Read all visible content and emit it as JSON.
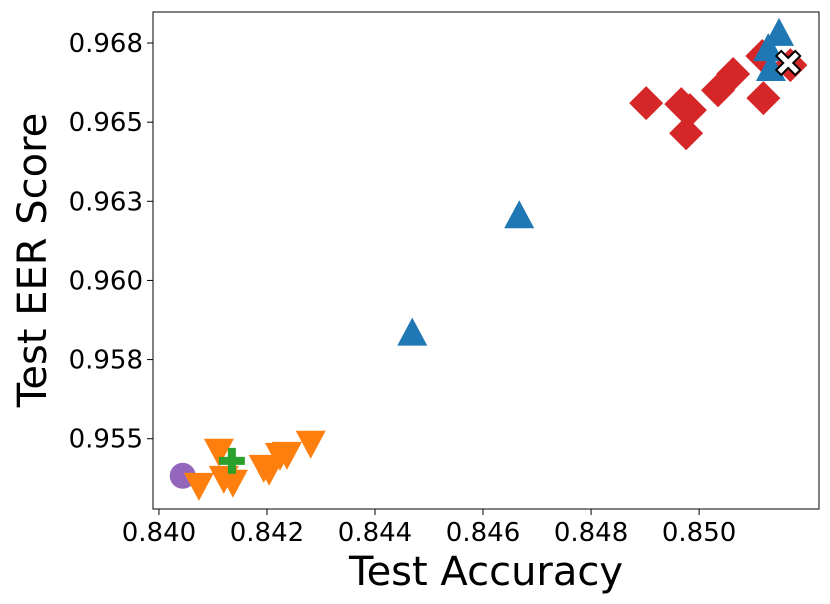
{
  "chart_data": {
    "type": "scatter",
    "xlabel": "Test Accuracy",
    "ylabel": "Test EER Score",
    "xlim": [
      0.83989,
      0.85222
    ],
    "ylim": [
      0.95278,
      0.96848
    ],
    "xticks": [
      {
        "value": 0.84,
        "label": "0.840"
      },
      {
        "value": 0.842,
        "label": "0.842"
      },
      {
        "value": 0.844,
        "label": "0.844"
      },
      {
        "value": 0.846,
        "label": "0.846"
      },
      {
        "value": 0.848,
        "label": "0.848"
      },
      {
        "value": 0.85,
        "label": "0.850"
      }
    ],
    "yticks": [
      {
        "value": 0.955,
        "label": "0.955"
      },
      {
        "value": 0.9575,
        "label": "0.958"
      },
      {
        "value": 0.96,
        "label": "0.960"
      },
      {
        "value": 0.9625,
        "label": "0.963"
      },
      {
        "value": 0.965,
        "label": "0.965"
      },
      {
        "value": 0.9675,
        "label": "0.968"
      }
    ],
    "series": [
      {
        "color": "#9467bd",
        "marker": "circle",
        "x": [
          0.84044
        ],
        "values": [
          0.95383
        ]
      },
      {
        "color": "#ff7f0e",
        "marker": "triangle-down",
        "x": [
          0.84111,
          0.84074,
          0.8412,
          0.84137,
          0.84194,
          0.84204,
          0.84224,
          0.84237,
          0.84281
        ],
        "values": [
          0.95459,
          0.95351,
          0.95373,
          0.95361,
          0.95408,
          0.95399,
          0.95446,
          0.95449,
          0.95484
        ]
      },
      {
        "color": "#2ca02c",
        "marker": "plus",
        "x": [
          0.84135
        ],
        "values": [
          0.9543
        ]
      },
      {
        "color": "#d62728",
        "marker": "diamond",
        "x": [
          0.84902,
          0.84967,
          0.84983,
          0.84976,
          0.85035,
          0.85063,
          0.85119,
          0.85117,
          0.85169
        ],
        "values": [
          0.9656,
          0.96557,
          0.96538,
          0.96465,
          0.96601,
          0.96652,
          0.96576,
          0.96709,
          0.9668
        ]
      },
      {
        "color": "#1f77b4",
        "marker": "triangle-up",
        "x": [
          0.84469,
          0.84667,
          0.85148,
          0.85128,
          0.85133
        ],
        "values": [
          0.95835,
          0.96206,
          0.96782,
          0.96734,
          0.96671
        ]
      },
      {
        "color": "#ffffff",
        "marker": "x",
        "x": [
          0.85165
        ],
        "values": [
          0.96687
        ]
      }
    ]
  }
}
